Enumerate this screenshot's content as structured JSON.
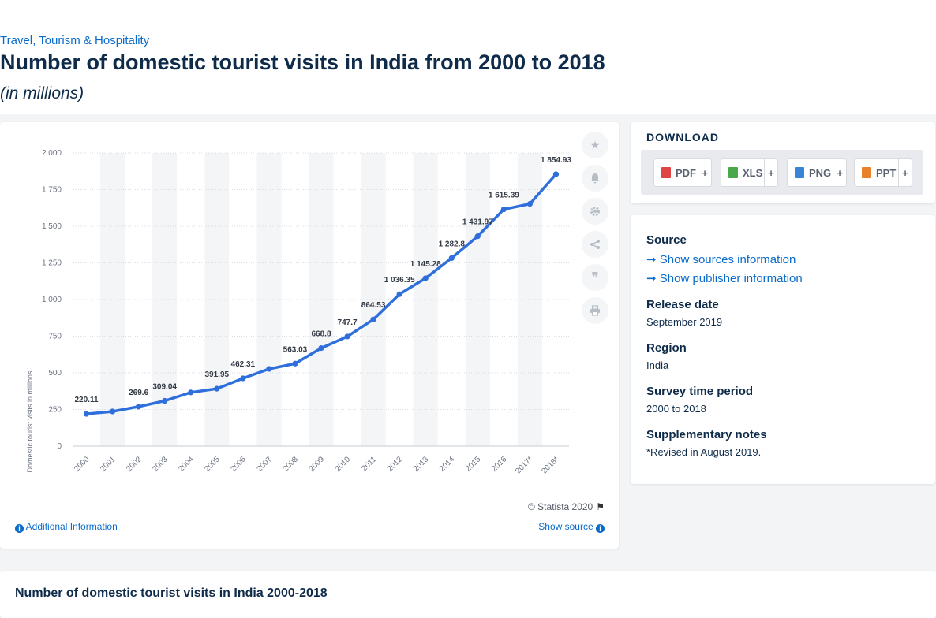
{
  "breadcrumb": "Travel, Tourism & Hospitality",
  "title": "Number of domestic tourist visits in India from 2000 to 2018",
  "subtitle": "(in millions)",
  "chart_data": {
    "type": "line",
    "title": "",
    "xlabel": "",
    "ylabel": "Domestic tourist visits in millions",
    "categories": [
      "2000",
      "2001",
      "2002",
      "2003",
      "2004",
      "2005",
      "2006",
      "2007",
      "2008",
      "2009",
      "2010",
      "2011",
      "2012",
      "2013",
      "2014",
      "2015",
      "2016",
      "2017*",
      "2018*"
    ],
    "series": [
      {
        "name": "",
        "values": [
          220.11,
          236.5,
          269.6,
          309.04,
          366.2,
          391.95,
          462.31,
          526.7,
          563.03,
          668.8,
          747.7,
          864.53,
          1036.35,
          1145.28,
          1282.8,
          1431.97,
          1615.39,
          1652.5,
          1854.93
        ],
        "labels": [
          "220.11",
          "",
          "269.6",
          "309.04",
          "",
          "391.95",
          "462.31",
          "",
          "563.03",
          "668.8",
          "747.7",
          "864.53",
          "1 036.35",
          "1 145.28",
          "1 282.8",
          "1 431.97",
          "1 615.39",
          "",
          "1 854.93"
        ]
      }
    ],
    "yticks": [
      "0",
      "250",
      "500",
      "750",
      "1 000",
      "1 250",
      "1 500",
      "1 750",
      "2 000"
    ],
    "ylim": [
      0,
      2000
    ],
    "grid": true,
    "line_color": "#2f6fdc",
    "band_color": "#f4f5f7"
  },
  "chart_footer": {
    "copyright": "© Statista 2020",
    "additional_info": "Additional Information",
    "show_source": "Show source"
  },
  "download": {
    "title": "DOWNLOAD",
    "buttons": [
      {
        "label": "PDF",
        "plus": "+",
        "color": "#e04545"
      },
      {
        "label": "XLS",
        "plus": "+",
        "color": "#4aa84a"
      },
      {
        "label": "PNG",
        "plus": "+",
        "color": "#3a84d8"
      },
      {
        "label": "PPT",
        "plus": "+",
        "color": "#e8822a"
      }
    ]
  },
  "meta": {
    "source_label": "Source",
    "show_sources": "Show sources information",
    "show_publisher": "Show publisher information",
    "release_label": "Release date",
    "release_value": "September 2019",
    "region_label": "Region",
    "region_value": "India",
    "survey_label": "Survey time period",
    "survey_value": "2000 to 2018",
    "notes_label": "Supplementary notes",
    "notes_value": "*Revised in August 2019."
  },
  "bottom_title": "Number of domestic tourist visits in India 2000-2018"
}
